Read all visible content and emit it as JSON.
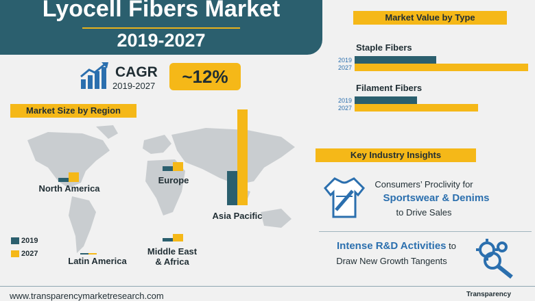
{
  "title": {
    "main": "Lyocell Fibers Market",
    "years": "2019-2027"
  },
  "cagr": {
    "label": "CAGR",
    "period": "2019-2027",
    "value": "~12%"
  },
  "sections": {
    "region": "Market Size by Region",
    "value_by_type": "Market Value by Type",
    "insights": "Key Industry Insights"
  },
  "legend": {
    "y2019": "2019",
    "y2027": "2027"
  },
  "colors": {
    "series2019": "#2b5f6e",
    "series2027": "#f5b818",
    "accent_blue": "#2b6fae"
  },
  "chart_data": [
    {
      "type": "bar",
      "categories": [
        "North America",
        "Europe",
        "Asia Pacific",
        "Latin America",
        "Middle East & Africa"
      ],
      "series": [
        {
          "name": "2019",
          "values": [
            6,
            7,
            50,
            1,
            5
          ]
        },
        {
          "name": "2027",
          "values": [
            14,
            13,
            140,
            1.5,
            11
          ]
        }
      ],
      "title": "Market Size by Region"
    },
    {
      "type": "bar",
      "orientation": "horizontal",
      "categories": [
        "Staple Fibers",
        "Filament Fibers"
      ],
      "series": [
        {
          "name": "2019",
          "values": [
            47,
            36
          ]
        },
        {
          "name": "2027",
          "values": [
            100,
            71
          ]
        }
      ],
      "title": "Market Value by Type"
    }
  ],
  "regions": {
    "na": "North America",
    "eu": "Europe",
    "ap": "Asia Pacific",
    "la": "Latin America",
    "mea1": "Middle East",
    "mea2": "& Africa"
  },
  "types": {
    "staple": "Staple Fibers",
    "filament": "Filament Fibers"
  },
  "insight1": {
    "line1": "Consumers’ Proclivity for",
    "highlight": "Sportswear & Denims",
    "line3": "to Drive Sales"
  },
  "insight2": {
    "highlight": "Intense R&D Activities",
    "tail": " to",
    "line2": "Draw New Growth Tangents"
  },
  "icons": {
    "cagr": "growth-chart-icon",
    "shirt": "jersey-icon",
    "gears": "gears-magnifier-icon"
  },
  "footer": {
    "url": "www.transparencymarketresearch.com",
    "brand": "Transparency"
  }
}
